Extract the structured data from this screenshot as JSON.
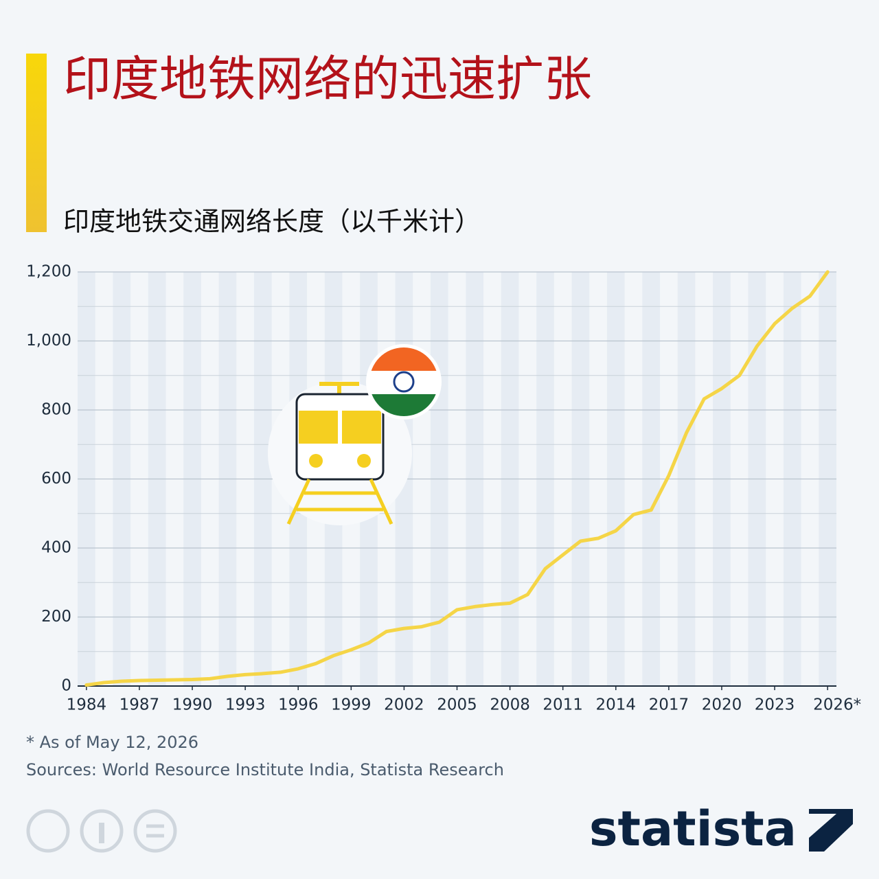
{
  "chart_data": {
    "type": "line",
    "title": "印度地铁网络的迅速扩张",
    "subtitle": "印度地铁交通网络长度（以千米计）",
    "x": [
      1984,
      1985,
      1986,
      1987,
      1988,
      1989,
      1990,
      1991,
      1992,
      1993,
      1994,
      1995,
      1996,
      1997,
      1998,
      1999,
      2000,
      2001,
      2002,
      2003,
      2004,
      2005,
      2006,
      2007,
      2008,
      2009,
      2010,
      2011,
      2012,
      2013,
      2014,
      2015,
      2016,
      2017,
      2018,
      2019,
      2020,
      2021,
      2022,
      2023,
      2024,
      2025,
      2026
    ],
    "values": [
      3,
      10,
      14,
      16,
      17,
      18,
      19,
      21,
      28,
      33,
      36,
      40,
      50,
      65,
      88,
      105,
      125,
      158,
      167,
      172,
      185,
      221,
      230,
      236,
      240,
      265,
      340,
      380,
      420,
      428,
      450,
      497,
      510,
      610,
      734,
      832,
      862,
      900,
      985,
      1050,
      1095,
      1130,
      1200
    ],
    "color": "#f5d547",
    "xlim": [
      1983.5,
      2026.5
    ],
    "xticks": [
      1984,
      1987,
      1990,
      1993,
      1996,
      1999,
      2002,
      2005,
      2008,
      2011,
      2014,
      2017,
      2020,
      2023,
      {
        "value": 2026,
        "label": "2026*"
      }
    ],
    "ylim": [
      0,
      1200
    ],
    "yticks": [
      0,
      200,
      400,
      600,
      800,
      {
        "value": 1000,
        "label": "1,000"
      },
      {
        "value": 1200,
        "label": "1,200"
      }
    ],
    "grid": true,
    "footnote": "* As of May 12, 2026",
    "source": "Sources: World Resource Institute India, Statista Research",
    "brand": "statista"
  }
}
